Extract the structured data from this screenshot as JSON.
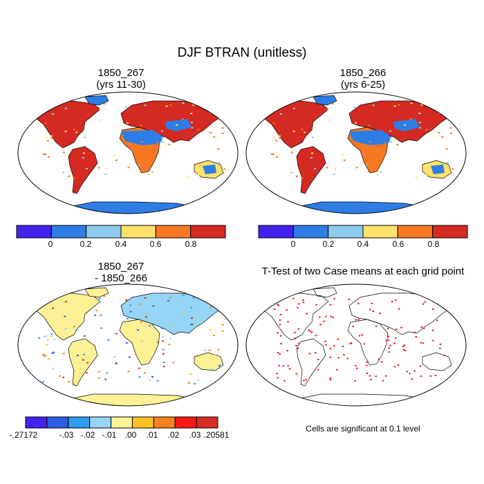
{
  "figure": {
    "title": "DJF BTRAN (unitless)",
    "note": "Cells are significant at 0.1 level"
  },
  "panels": {
    "top_left": {
      "title_line1": "1850_267",
      "title_line2": "(yrs 11-30)"
    },
    "top_right": {
      "title_line1": "1850_266",
      "title_line2": "(yrs 6-25)"
    },
    "bottom_left": {
      "title_line1": "1850_267",
      "title_line2": "- 1850_266"
    },
    "bottom_right": {
      "title": "T-Test of two Case means at each grid point"
    }
  },
  "colorbars": {
    "main": {
      "colors": [
        "#4422ee",
        "#2e7de6",
        "#8ccbee",
        "#fde16a",
        "#f77722",
        "#d52a22"
      ],
      "labels": [
        "0",
        "0.2",
        "0.4",
        "0.6",
        "0.8"
      ]
    },
    "diff": {
      "colors": [
        "#4422ee",
        "#2e5de6",
        "#2e9cef",
        "#96d5f6",
        "#fdf196",
        "#fbc21f",
        "#f5821d",
        "#fb1818",
        "#d82c27"
      ],
      "labels": [
        ".27172",
        "-.03",
        "-.02",
        "-.01",
        ".00",
        ".01",
        ".02",
        ".03",
        ".20581"
      ]
    }
  },
  "colors": {
    "ocean": "#ffffff",
    "antarctica_main": "#2e7de6",
    "antarctica_diff": "#fdf196",
    "significant": "#e8141a"
  }
}
